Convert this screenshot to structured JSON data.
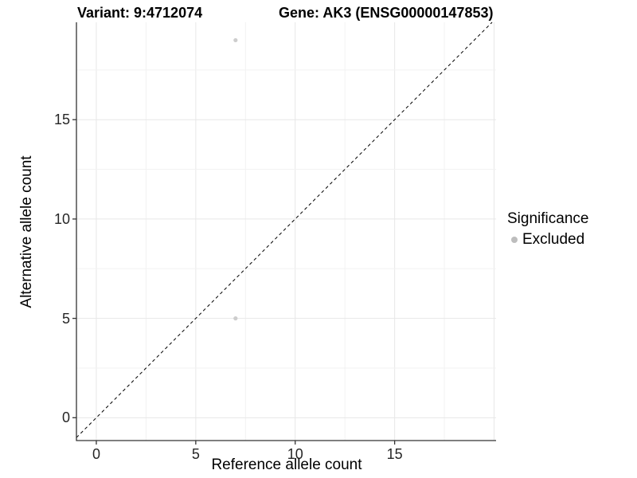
{
  "chart_data": {
    "type": "scatter",
    "title_left": "Variant: 9:4712074",
    "title_right": "Gene: AK3 (ENSG00000147853)",
    "xlabel": "Reference allele count",
    "ylabel": "Alternative allele count",
    "xlim": [
      -1.0,
      20.1
    ],
    "ylim": [
      -1.15,
      19.9
    ],
    "xticks": [
      {
        "value": 0,
        "label": "0"
      },
      {
        "value": 5,
        "label": "5"
      },
      {
        "value": 10,
        "label": "10"
      },
      {
        "value": 15,
        "label": "15"
      }
    ],
    "yticks": [
      {
        "value": 0,
        "label": "0"
      },
      {
        "value": 5,
        "label": "5"
      },
      {
        "value": 10,
        "label": "10"
      },
      {
        "value": 15,
        "label": "15"
      }
    ],
    "minor_step": 2.5,
    "major_step": 5,
    "identity_line": true,
    "grid": true,
    "points": [
      {
        "x": 7,
        "y": 19,
        "series": "Excluded"
      },
      {
        "x": 7,
        "y": 5,
        "series": "Excluded"
      }
    ],
    "legend": {
      "title": "Significance",
      "position": "right",
      "entries": [
        {
          "label": "Excluded",
          "color": "#bdbdbd"
        }
      ]
    },
    "colors": {
      "point": "#cdcdcd",
      "axis_line": "#333333",
      "tick_mark": "#333333",
      "grid_major": "#e7e7e7",
      "grid_minor": "#f2f2f2",
      "identity_line": "#000000",
      "background": "#ffffff"
    }
  }
}
